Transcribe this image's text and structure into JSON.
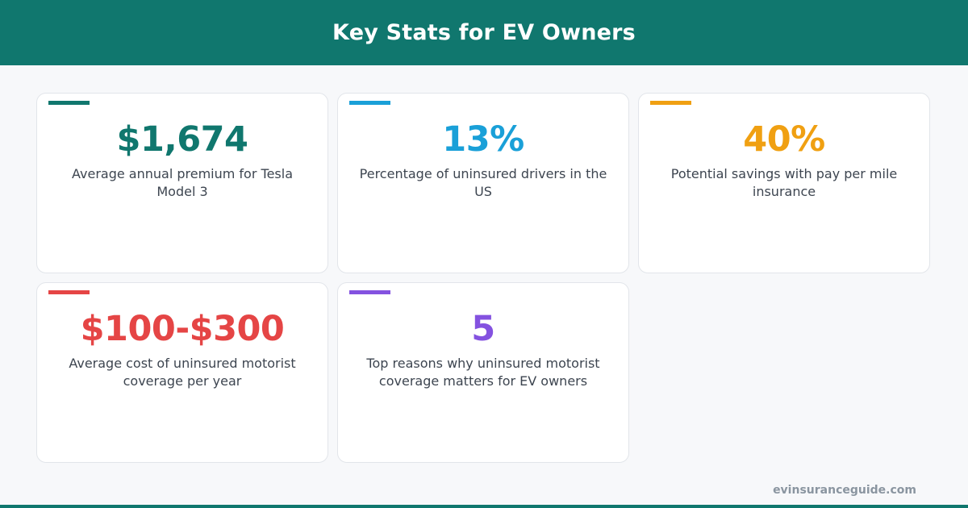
{
  "header": {
    "title": "Key Stats for EV Owners"
  },
  "colors": {
    "header_bg": "#10776e",
    "teal": "#10776e",
    "blue": "#1aa0d8",
    "orange": "#f0a012",
    "red": "#e54545",
    "purple": "#8452e0"
  },
  "stats": [
    {
      "value": "$1,674",
      "description": "Average annual premium for Tesla Model 3",
      "color": "#10776e"
    },
    {
      "value": "13%",
      "description": "Percentage of uninsured drivers in the US",
      "color": "#1aa0d8"
    },
    {
      "value": "40%",
      "description": "Potential savings with pay per mile insurance",
      "color": "#f0a012"
    },
    {
      "value": "$100-$300",
      "description": "Average cost of uninsured motorist coverage per year",
      "color": "#e54545"
    },
    {
      "value": "5",
      "description": "Top reasons why uninsured motorist coverage matters for EV owners",
      "color": "#8452e0"
    }
  ],
  "footer": {
    "site": "evinsuranceguide.com"
  }
}
